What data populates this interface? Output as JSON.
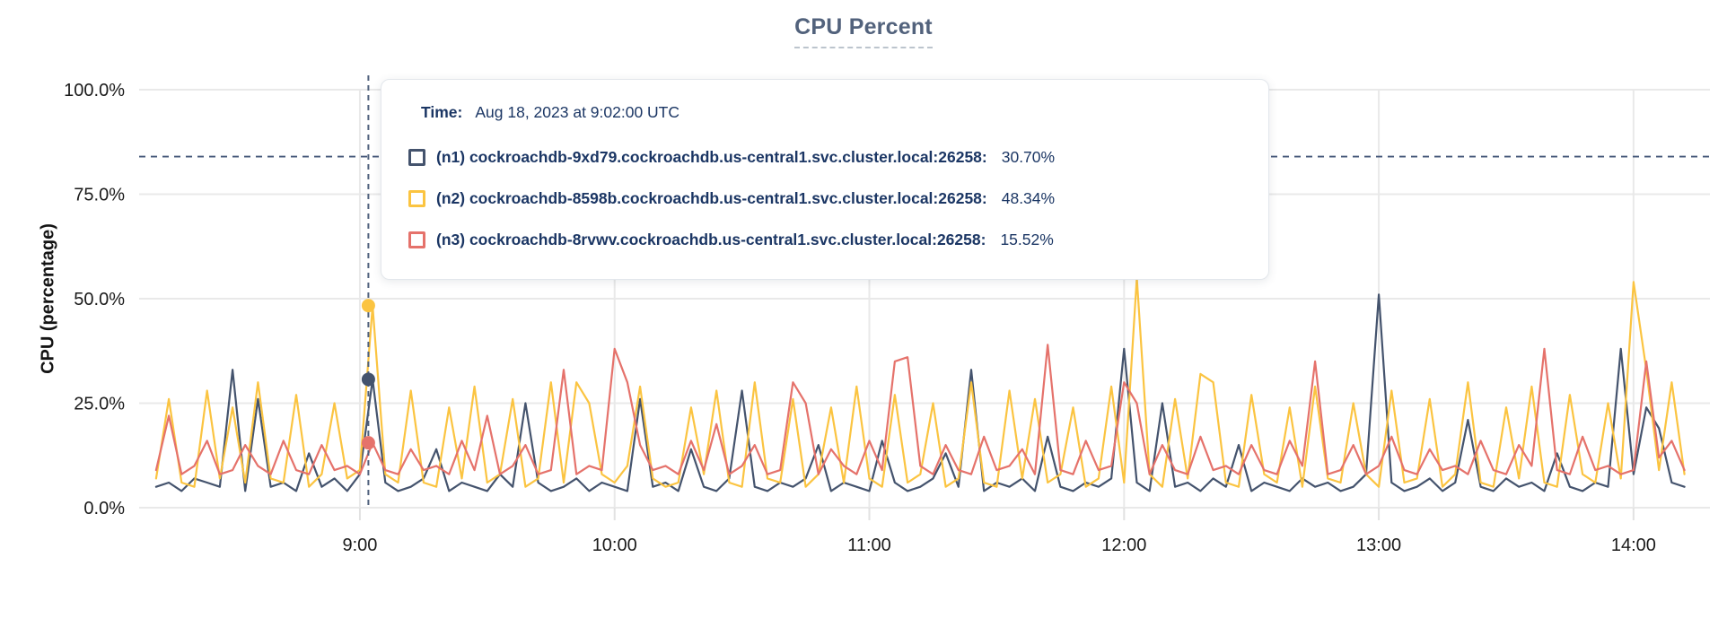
{
  "title": {
    "text": "CPU Percent"
  },
  "tooltip": {
    "time_label": "Time:",
    "time_value": "Aug 18, 2023 at 9:02:00 UTC",
    "rows": [
      {
        "name": "(n1) cockroachdb-9xd79.cockroachdb.us-central1.svc.cluster.local:26258:",
        "value": "30.70%",
        "color": "#44536D"
      },
      {
        "name": "(n2) cockroachdb-8598b.cockroachdb.us-central1.svc.cluster.local:26258:",
        "value": "48.34%",
        "color": "#FBC441"
      },
      {
        "name": "(n3) cockroachdb-8rvwv.cockroachdb.us-central1.svc.cluster.local:26258:",
        "value": "15.52%",
        "color": "#E5726B"
      }
    ]
  },
  "chart_data": {
    "type": "line",
    "title": "CPU Percent",
    "xlabel": "",
    "ylabel": "CPU (percentage)",
    "ylim": [
      0,
      100
    ],
    "grid": true,
    "x_unit": "minutes since midnight UTC, Aug 18 2023",
    "x_domain": [
      488,
      858
    ],
    "x_start": 492,
    "x_step": 3,
    "y_ticks": [
      {
        "value": 100,
        "label": "100.0%"
      },
      {
        "value": 75,
        "label": "75.0%"
      },
      {
        "value": 50,
        "label": "50.0%"
      },
      {
        "value": 25,
        "label": "25.0%"
      },
      {
        "value": 0,
        "label": "0.0%"
      }
    ],
    "x_ticks": [
      {
        "minute": 540,
        "label": "9:00"
      },
      {
        "minute": 600,
        "label": "10:00"
      },
      {
        "minute": 660,
        "label": "11:00"
      },
      {
        "minute": 720,
        "label": "12:00"
      },
      {
        "minute": 780,
        "label": "13:00"
      },
      {
        "minute": 840,
        "label": "14:00"
      }
    ],
    "threshold_line": {
      "value": 84,
      "style": "dashed",
      "color": "#46587a"
    },
    "crosshair": {
      "minute": 542,
      "time": "Aug 18, 2023 at 9:02:00 UTC",
      "color": "#4f617c"
    },
    "highlight_points": [
      {
        "series_index": 0,
        "minute": 542,
        "value": 30.7
      },
      {
        "series_index": 1,
        "minute": 542,
        "value": 48.34
      },
      {
        "series_index": 2,
        "minute": 542,
        "value": 15.52
      }
    ],
    "series": [
      {
        "name": "(n1) cockroachdb-9xd79.cockroachdb.us-central1.svc.cluster.local:26258",
        "color": "#44536D",
        "values": [
          5,
          6,
          4,
          7,
          6,
          5,
          33,
          4,
          26,
          5,
          6,
          4,
          13,
          5,
          7,
          4,
          8,
          30.7,
          6,
          4,
          5,
          7,
          14,
          4,
          6,
          5,
          4,
          8,
          5,
          25,
          6,
          4,
          5,
          7,
          4,
          6,
          5,
          4,
          26,
          5,
          6,
          4,
          14,
          5,
          4,
          7,
          28,
          5,
          4,
          6,
          5,
          7,
          15,
          4,
          6,
          5,
          4,
          16,
          6,
          4,
          5,
          7,
          13,
          5,
          33,
          4,
          6,
          5,
          7,
          4,
          17,
          5,
          4,
          6,
          5,
          7,
          38,
          6,
          4,
          25,
          5,
          6,
          4,
          7,
          5,
          15,
          4,
          6,
          5,
          4,
          7,
          5,
          6,
          4,
          5,
          8,
          51,
          6,
          4,
          5,
          7,
          4,
          6,
          21,
          5,
          4,
          7,
          5,
          6,
          4,
          13,
          5,
          4,
          6,
          5,
          38,
          8,
          24,
          19,
          6,
          5
        ]
      },
      {
        "name": "(n2) cockroachdb-8598b.cockroachdb.us-central1.svc.cluster.local:26258",
        "color": "#FBC441",
        "values": [
          7,
          26,
          6,
          5,
          28,
          7,
          24,
          6,
          30,
          7,
          6,
          27,
          5,
          8,
          25,
          7,
          9,
          48.3,
          8,
          6,
          28,
          6,
          5,
          24,
          7,
          29,
          6,
          8,
          26,
          5,
          7,
          30,
          6,
          30,
          25,
          8,
          6,
          10,
          29,
          7,
          5,
          6,
          24,
          8,
          28,
          6,
          5,
          30,
          7,
          6,
          26,
          5,
          8,
          24,
          6,
          29,
          7,
          5,
          27,
          6,
          8,
          25,
          5,
          7,
          30,
          6,
          5,
          28,
          7,
          26,
          6,
          8,
          24,
          5,
          7,
          29,
          6,
          55,
          8,
          5,
          26,
          7,
          32,
          30,
          6,
          5,
          27,
          8,
          6,
          24,
          5,
          29,
          7,
          6,
          25,
          8,
          5,
          28,
          6,
          7,
          26,
          5,
          8,
          30,
          6,
          5,
          24,
          7,
          29,
          6,
          5,
          27,
          8,
          6,
          25,
          7,
          54,
          33,
          9,
          30,
          8
        ]
      },
      {
        "name": "(n3) cockroachdb-8rvwv.cockroachdb.us-central1.svc.cluster.local:26258",
        "color": "#E5726B",
        "values": [
          9,
          22,
          8,
          10,
          16,
          8,
          9,
          15,
          10,
          8,
          16,
          9,
          8,
          15,
          9,
          10,
          8,
          15.5,
          9,
          8,
          14,
          9,
          10,
          8,
          16,
          9,
          22,
          8,
          10,
          15,
          8,
          9,
          33,
          8,
          10,
          9,
          38,
          30,
          15,
          9,
          10,
          8,
          16,
          9,
          20,
          8,
          10,
          15,
          8,
          9,
          30,
          25,
          8,
          14,
          10,
          8,
          16,
          9,
          35,
          36,
          10,
          8,
          15,
          9,
          8,
          17,
          9,
          10,
          14,
          8,
          39,
          9,
          8,
          16,
          9,
          10,
          30,
          25,
          8,
          15,
          9,
          8,
          17,
          9,
          10,
          8,
          15,
          9,
          8,
          16,
          10,
          35,
          8,
          9,
          15,
          8,
          10,
          17,
          9,
          8,
          14,
          9,
          10,
          8,
          16,
          9,
          8,
          15,
          10,
          38,
          9,
          8,
          17,
          9,
          10,
          8,
          9,
          35,
          12,
          16,
          9
        ]
      }
    ]
  }
}
